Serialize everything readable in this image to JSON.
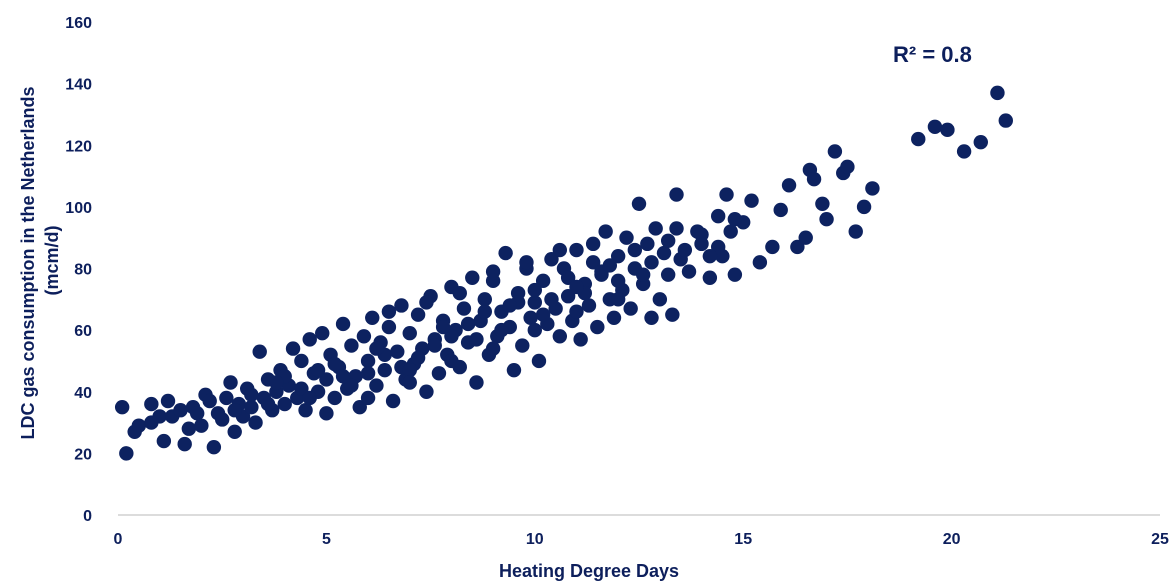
{
  "chart_data": {
    "type": "scatter",
    "xlabel": "Heating Degree Days",
    "ylabel_lines": [
      "LDC gas consumption in the Netherlands",
      "(mcm/d)"
    ],
    "xlim": [
      0,
      25
    ],
    "ylim": [
      0,
      160
    ],
    "x_ticks": [
      0,
      5,
      10,
      15,
      20,
      25
    ],
    "y_ticks": [
      0,
      20,
      40,
      60,
      80,
      100,
      120,
      140,
      160
    ],
    "grid": false,
    "legend": "none",
    "annotation": "R² = 0.8",
    "marker_color": "#0d2260",
    "axis_color": "#d0d0d0",
    "text_color": "#0d1f5c",
    "series": [
      {
        "points": [
          [
            0.1,
            35
          ],
          [
            0.2,
            20
          ],
          [
            0.4,
            27
          ],
          [
            0.5,
            29
          ],
          [
            0.8,
            30
          ],
          [
            0.8,
            36
          ],
          [
            1.0,
            32
          ],
          [
            1.1,
            24
          ],
          [
            1.2,
            37
          ],
          [
            1.3,
            32
          ],
          [
            1.5,
            34
          ],
          [
            1.6,
            23
          ],
          [
            1.7,
            28
          ],
          [
            1.8,
            35
          ],
          [
            1.9,
            33
          ],
          [
            2.0,
            29
          ],
          [
            2.1,
            39
          ],
          [
            2.2,
            37
          ],
          [
            2.3,
            22
          ],
          [
            2.4,
            33
          ],
          [
            2.5,
            31
          ],
          [
            2.6,
            38
          ],
          [
            2.7,
            43
          ],
          [
            2.8,
            27
          ],
          [
            2.9,
            36
          ],
          [
            3.0,
            32
          ],
          [
            3.1,
            41
          ],
          [
            3.2,
            35
          ],
          [
            3.3,
            30
          ],
          [
            3.4,
            53
          ],
          [
            3.5,
            38
          ],
          [
            3.6,
            44
          ],
          [
            3.7,
            34
          ],
          [
            3.8,
            40
          ],
          [
            3.9,
            47
          ],
          [
            4.0,
            36
          ],
          [
            4.1,
            42
          ],
          [
            4.2,
            54
          ],
          [
            4.3,
            38
          ],
          [
            4.4,
            50
          ],
          [
            4.5,
            34
          ],
          [
            4.6,
            57
          ],
          [
            4.7,
            46
          ],
          [
            4.8,
            40
          ],
          [
            4.9,
            59
          ],
          [
            5.0,
            44
          ],
          [
            5.1,
            52
          ],
          [
            5.2,
            38
          ],
          [
            5.3,
            48
          ],
          [
            5.4,
            62
          ],
          [
            5.5,
            41
          ],
          [
            5.6,
            55
          ],
          [
            5.7,
            45
          ],
          [
            5.8,
            35
          ],
          [
            5.9,
            58
          ],
          [
            6.0,
            50
          ],
          [
            6.1,
            64
          ],
          [
            6.2,
            42
          ],
          [
            6.3,
            56
          ],
          [
            6.4,
            47
          ],
          [
            6.5,
            61
          ],
          [
            6.6,
            37
          ],
          [
            6.7,
            53
          ],
          [
            6.8,
            68
          ],
          [
            6.9,
            44
          ],
          [
            7.0,
            59
          ],
          [
            7.1,
            49
          ],
          [
            7.2,
            65
          ],
          [
            7.3,
            54
          ],
          [
            7.4,
            40
          ],
          [
            7.5,
            71
          ],
          [
            7.6,
            57
          ],
          [
            7.7,
            46
          ],
          [
            7.8,
            63
          ],
          [
            7.9,
            52
          ],
          [
            8.0,
            74
          ],
          [
            8.1,
            60
          ],
          [
            8.2,
            48
          ],
          [
            8.3,
            67
          ],
          [
            8.4,
            56
          ],
          [
            8.5,
            77
          ],
          [
            8.6,
            43
          ],
          [
            8.7,
            63
          ],
          [
            8.8,
            70
          ],
          [
            8.9,
            52
          ],
          [
            9.0,
            79
          ],
          [
            9.1,
            58
          ],
          [
            9.2,
            66
          ],
          [
            9.3,
            85
          ],
          [
            9.4,
            61
          ],
          [
            9.5,
            47
          ],
          [
            9.6,
            72
          ],
          [
            9.7,
            55
          ],
          [
            9.8,
            80
          ],
          [
            9.9,
            64
          ],
          [
            10.0,
            69
          ],
          [
            10.1,
            50
          ],
          [
            10.2,
            76
          ],
          [
            10.3,
            62
          ],
          [
            10.4,
            83
          ],
          [
            10.5,
            67
          ],
          [
            10.6,
            58
          ],
          [
            10.7,
            80
          ],
          [
            10.8,
            71
          ],
          [
            10.9,
            63
          ],
          [
            11.0,
            86
          ],
          [
            11.1,
            57
          ],
          [
            11.2,
            75
          ],
          [
            11.3,
            68
          ],
          [
            11.4,
            82
          ],
          [
            11.5,
            61
          ],
          [
            11.6,
            78
          ],
          [
            11.7,
            92
          ],
          [
            11.8,
            70
          ],
          [
            11.9,
            64
          ],
          [
            12.0,
            84
          ],
          [
            12.1,
            73
          ],
          [
            12.2,
            90
          ],
          [
            12.3,
            67
          ],
          [
            12.4,
            80
          ],
          [
            12.5,
            101
          ],
          [
            12.6,
            75
          ],
          [
            12.7,
            88
          ],
          [
            12.8,
            64
          ],
          [
            12.9,
            93
          ],
          [
            13.0,
            70
          ],
          [
            13.1,
            85
          ],
          [
            13.2,
            78
          ],
          [
            13.3,
            65
          ],
          [
            13.4,
            104
          ],
          [
            13.5,
            83
          ],
          [
            13.7,
            79
          ],
          [
            13.9,
            92
          ],
          [
            14.0,
            88
          ],
          [
            14.2,
            77
          ],
          [
            14.4,
            97
          ],
          [
            14.5,
            84
          ],
          [
            14.6,
            104
          ],
          [
            14.7,
            92
          ],
          [
            14.8,
            78
          ],
          [
            15.0,
            95
          ],
          [
            15.2,
            102
          ],
          [
            15.4,
            82
          ],
          [
            15.7,
            87
          ],
          [
            15.9,
            99
          ],
          [
            16.1,
            107
          ],
          [
            16.3,
            87
          ],
          [
            16.5,
            90
          ],
          [
            16.6,
            112
          ],
          [
            16.7,
            109
          ],
          [
            16.9,
            101
          ],
          [
            17.0,
            96
          ],
          [
            17.2,
            118
          ],
          [
            17.4,
            111
          ],
          [
            17.5,
            113
          ],
          [
            17.7,
            92
          ],
          [
            17.9,
            100
          ],
          [
            18.1,
            106
          ],
          [
            19.2,
            122
          ],
          [
            19.6,
            126
          ],
          [
            19.9,
            125
          ],
          [
            20.3,
            118
          ],
          [
            20.7,
            121
          ],
          [
            21.1,
            137
          ],
          [
            21.3,
            128
          ],
          [
            3.2,
            39
          ],
          [
            3.6,
            36
          ],
          [
            4.0,
            45
          ],
          [
            4.4,
            41
          ],
          [
            4.8,
            47
          ],
          [
            5.2,
            49
          ],
          [
            5.6,
            42
          ],
          [
            6.0,
            46
          ],
          [
            6.4,
            52
          ],
          [
            6.8,
            48
          ],
          [
            7.2,
            51
          ],
          [
            7.6,
            55
          ],
          [
            8.0,
            58
          ],
          [
            8.4,
            62
          ],
          [
            8.8,
            66
          ],
          [
            9.2,
            60
          ],
          [
            9.6,
            69
          ],
          [
            10.0,
            73
          ],
          [
            10.4,
            70
          ],
          [
            10.8,
            77
          ],
          [
            11.2,
            72
          ],
          [
            11.6,
            79
          ],
          [
            12.0,
            76
          ],
          [
            12.4,
            86
          ],
          [
            12.8,
            82
          ],
          [
            13.2,
            89
          ],
          [
            13.6,
            86
          ],
          [
            14.0,
            91
          ],
          [
            14.4,
            87
          ],
          [
            14.8,
            96
          ],
          [
            2.8,
            34
          ],
          [
            3.8,
            43
          ],
          [
            4.6,
            38
          ],
          [
            5.4,
            45
          ],
          [
            6.2,
            54
          ],
          [
            7.0,
            47
          ],
          [
            7.8,
            61
          ],
          [
            8.6,
            57
          ],
          [
            9.4,
            68
          ],
          [
            10.2,
            65
          ],
          [
            11.0,
            74
          ],
          [
            11.8,
            81
          ],
          [
            12.6,
            78
          ],
          [
            13.4,
            93
          ],
          [
            14.2,
            84
          ],
          [
            5.0,
            33
          ],
          [
            6.0,
            38
          ],
          [
            7.0,
            43
          ],
          [
            8.0,
            50
          ],
          [
            9.0,
            54
          ],
          [
            10.0,
            60
          ],
          [
            11.0,
            66
          ],
          [
            12.0,
            70
          ],
          [
            8.2,
            72
          ],
          [
            9.0,
            76
          ],
          [
            9.8,
            82
          ],
          [
            10.6,
            86
          ],
          [
            11.4,
            88
          ],
          [
            6.5,
            66
          ],
          [
            7.4,
            69
          ]
        ]
      }
    ]
  }
}
